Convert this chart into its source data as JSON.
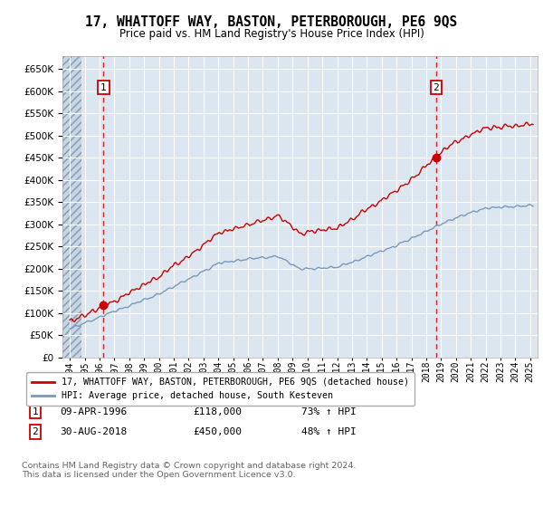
{
  "title": "17, WHATTOFF WAY, BASTON, PETERBOROUGH, PE6 9QS",
  "subtitle": "Price paid vs. HM Land Registry's House Price Index (HPI)",
  "background_color": "#ffffff",
  "plot_bg_color": "#dce6f0",
  "grid_color": "#ffffff",
  "sale1_date": 1996.27,
  "sale1_price": 118000,
  "sale2_date": 2018.66,
  "sale2_price": 450000,
  "sale1_date_str": "09-APR-1996",
  "sale1_price_str": "£118,000",
  "sale1_hpi_str": "73% ↑ HPI",
  "sale2_date_str": "30-AUG-2018",
  "sale2_price_str": "£450,000",
  "sale2_hpi_str": "48% ↑ HPI",
  "red_line_color": "#cc0000",
  "blue_line_color": "#7799bb",
  "dashed_line_color": "#cc0000",
  "legend_label_red": "17, WHATTOFF WAY, BASTON, PETERBOROUGH, PE6 9QS (detached house)",
  "legend_label_blue": "HPI: Average price, detached house, South Kesteven",
  "footer_text": "Contains HM Land Registry data © Crown copyright and database right 2024.\nThis data is licensed under the Open Government Licence v3.0.",
  "ylim": [
    0,
    680000
  ],
  "yticks": [
    0,
    50000,
    100000,
    150000,
    200000,
    250000,
    300000,
    350000,
    400000,
    450000,
    500000,
    550000,
    600000,
    650000
  ],
  "xlim_start": 1993.5,
  "xlim_end": 2025.5,
  "hatch_end": 1994.75
}
